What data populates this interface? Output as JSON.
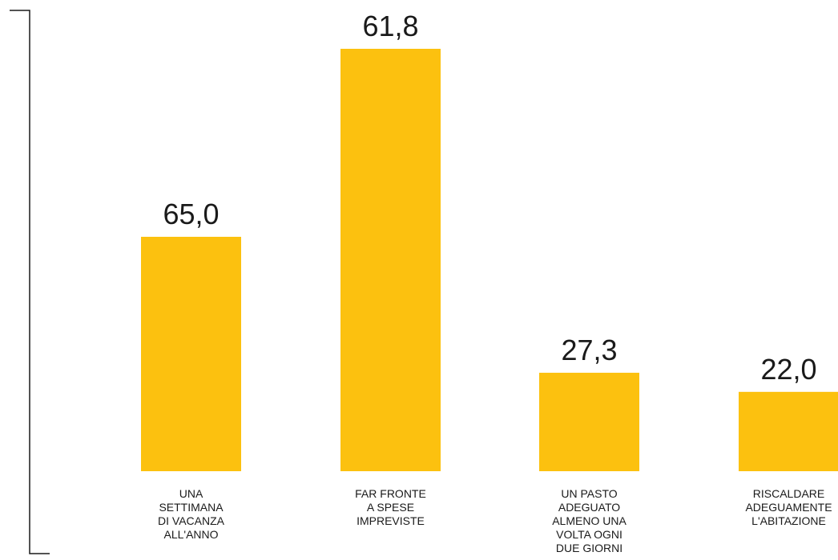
{
  "colors": {
    "bar": "#FCC10F",
    "text": "#1a1a1a",
    "axis": "#1a1a1a"
  },
  "chart_data": {
    "type": "bar",
    "categories": [
      [
        "UNA",
        "SETTIMANA",
        "DI VACANZA",
        "ALL'ANNO"
      ],
      [
        "FAR FRONTE",
        "A SPESE",
        "IMPREVISTE"
      ],
      [
        "UN PASTO",
        "ADEGUATO",
        "ALMENO UNA",
        "VOLTA OGNI",
        "DUE GIORNI"
      ],
      [
        "RISCALDARE",
        "ADEGUAMENTE",
        "L'ABITAZIONE"
      ]
    ],
    "values": [
      65.0,
      61.8,
      27.3,
      22.0
    ],
    "value_labels": [
      "65,0",
      "61,8",
      "27,3",
      "22,0"
    ],
    "title": "",
    "xlabel": "",
    "ylabel": "",
    "grid": false
  }
}
